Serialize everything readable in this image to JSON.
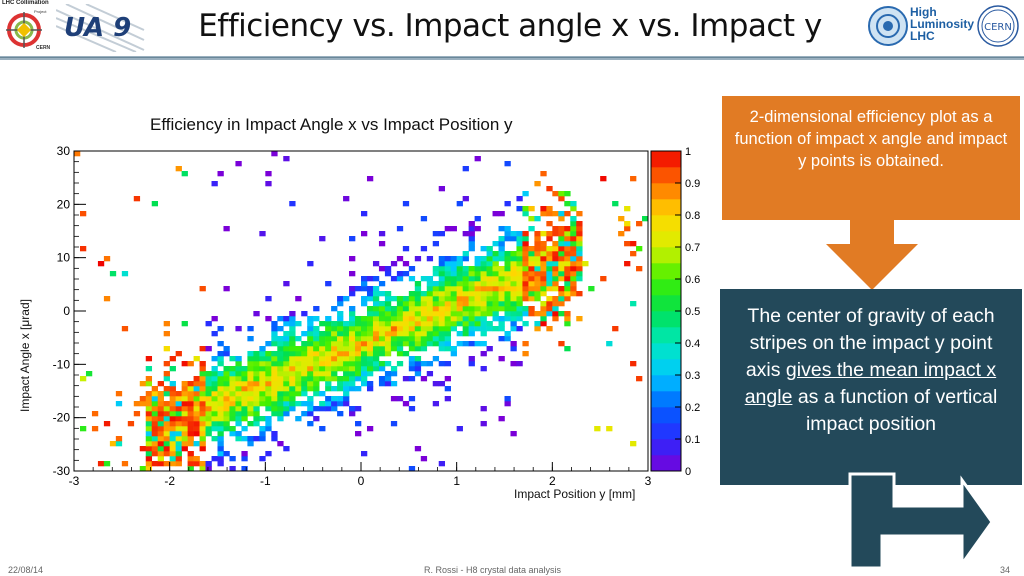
{
  "slide": {
    "title": "Efficiency vs. Impact angle x vs. Impact y",
    "footer_date": "22/08/14",
    "footer_center": "R. Rossi - H8 crystal data analysis",
    "page_number": "34"
  },
  "logos": {
    "lhc_collimation": "LHC Collimation",
    "lhc_collimation_sub": "Project",
    "cern_small": "CERN",
    "ua9": "UA 9",
    "hilumi_line1": "High",
    "hilumi_line2": "Luminosity",
    "hilumi_line3": "LHC",
    "cern": "CERN"
  },
  "colors": {
    "orange_box": "#e17b24",
    "navy_box": "#23495a",
    "arrow_orange": "#e17b24",
    "arrow_navy": "#23495a"
  },
  "callouts": {
    "orange_text": "2-dimensional efficiency plot as a function of impact x angle and impact y points is obtained.",
    "navy_text_before": "The center of gravity of each stripes on the impact y point axis ",
    "navy_text_underlined": "gives the mean impact x angle",
    "navy_text_after": " as a function of vertical impact position"
  },
  "chart_data": {
    "type": "heatmap",
    "title": "Efficiency in Impact Angle x vs Impact Position y",
    "xlabel": "Impact Position y [mm]",
    "ylabel": "Impact Angle x [μrad]",
    "xlim": [
      -3,
      3
    ],
    "ylim": [
      -30,
      30
    ],
    "x_ticks": [
      "-3",
      "-2",
      "-1",
      "0",
      "1",
      "2",
      "3"
    ],
    "y_ticks": [
      "-30",
      "-20",
      "-10",
      "0",
      "10",
      "20",
      "30"
    ],
    "z_range": [
      0,
      1
    ],
    "colorbar_ticks": [
      "0",
      "0.1",
      "0.2",
      "0.3",
      "0.4",
      "0.5",
      "0.6",
      "0.7",
      "0.8",
      "0.9",
      "1"
    ],
    "band": {
      "slope_urad_per_mm": 7.5,
      "intercept_urad": -6,
      "x_range": [
        -2,
        2.2
      ],
      "half_width_urad": 11
    }
  }
}
